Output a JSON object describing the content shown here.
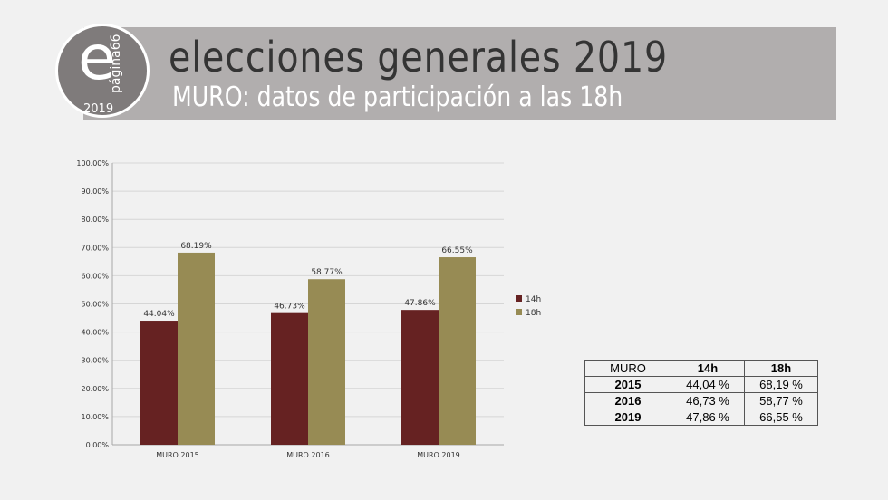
{
  "header": {
    "title": "elecciones generales 2019",
    "subtitle": "MURO: datos de participación a las 18h"
  },
  "logo": {
    "letter": "e",
    "name": "página66",
    "year": "2019"
  },
  "chart_data": {
    "type": "bar",
    "categories": [
      "MURO 2015",
      "MURO 2016",
      "MURO 2019"
    ],
    "series": [
      {
        "name": "14h",
        "values": [
          44.04,
          46.73,
          47.86
        ],
        "labels": [
          "44.04%",
          "46.73%",
          "47.86%"
        ],
        "color": "#662222"
      },
      {
        "name": "18h",
        "values": [
          68.19,
          58.77,
          66.55
        ],
        "labels": [
          "68.19%",
          "58.77%",
          "66.55%"
        ],
        "color": "#978b54"
      }
    ],
    "ylim": [
      0,
      100
    ],
    "yticks": [
      "0.00%",
      "10.00%",
      "20.00%",
      "30.00%",
      "40.00%",
      "50.00%",
      "60.00%",
      "70.00%",
      "80.00%",
      "90.00%",
      "100.00%"
    ],
    "grid": true,
    "legend_position": "right"
  },
  "table": {
    "header": [
      "MURO",
      "14h",
      "18h"
    ],
    "rows": [
      [
        "2015",
        "44,04 %",
        "68,19 %"
      ],
      [
        "2016",
        "46,73 %",
        "58,77 %"
      ],
      [
        "2019",
        "47,86 %",
        "66,55 %"
      ]
    ]
  }
}
